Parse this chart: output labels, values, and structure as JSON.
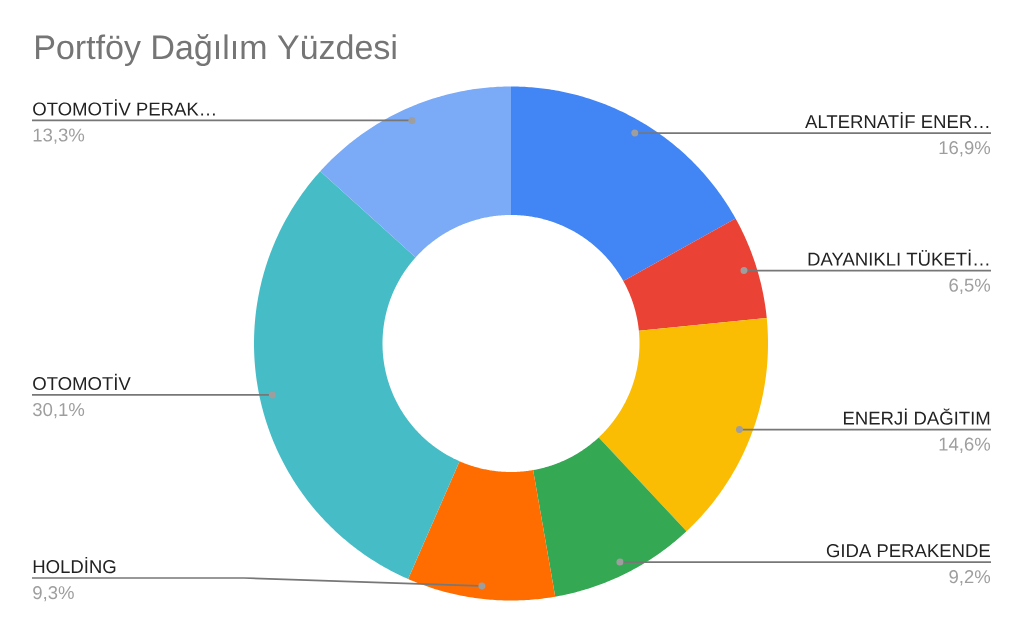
{
  "chart_data": {
    "type": "donut",
    "title": "Portföy Dağılım Yüzdesi",
    "categories": [
      "ALTERNATİF ENER…",
      "DAYANIKLI TÜKETİ…",
      "ENERJİ DAĞITIM",
      "GIDA PERAKENDE",
      "HOLDİNG",
      "OTOMOTİV",
      "OTOMOTİV PERAK…"
    ],
    "values": [
      16.9,
      6.5,
      14.6,
      9.2,
      9.3,
      30.1,
      13.3
    ],
    "colors": [
      "#4285f4",
      "#ea4335",
      "#fbbc04",
      "#34a853",
      "#ff6d01",
      "#46bdc6",
      "#7baaf7"
    ],
    "value_labels": [
      "16,9%",
      "6,5%",
      "14,6%",
      "9,2%",
      "9,3%",
      "30,1%",
      "13,3%"
    ]
  }
}
